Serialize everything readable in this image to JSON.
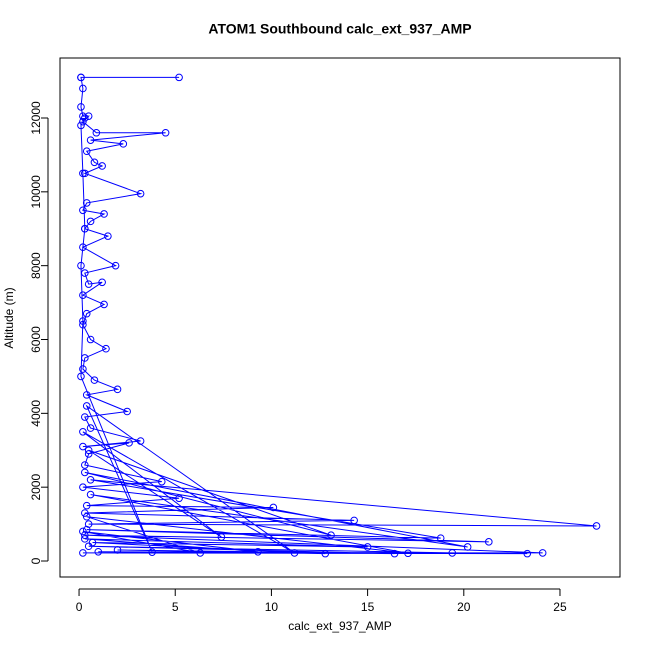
{
  "chart_data": {
    "type": "line",
    "title": "ATOM1 Southbound calc_ext_937_AMP",
    "x_label": "calc_ext_937_AMP",
    "y_label": "Altitude (m)",
    "xlim": [
      -0.99,
      28.12
    ],
    "ylim": [
      -433,
      13625
    ],
    "xticks": [
      0,
      5,
      10,
      15,
      20,
      25
    ],
    "yticks": [
      0,
      2000,
      4000,
      6000,
      8000,
      10000,
      12000
    ],
    "markers": true,
    "series": [
      {
        "color": "#0000ff",
        "x": [
          0.1,
          5.2,
          0.1,
          0.2,
          0.1,
          0.2,
          0.5,
          0.2,
          0.9,
          4.5,
          0.6,
          2.3,
          0.4,
          0.8,
          1.2,
          0.3,
          3.2,
          0.4,
          0.2,
          1.3,
          0.6,
          0.3,
          1.5,
          0.2,
          1.9,
          0.3,
          0.5,
          1.2,
          0.2,
          1.3,
          0.4,
          0.2,
          0.6,
          1.4,
          0.3,
          0.2,
          0.8,
          2.0,
          0.4,
          2.5,
          0.3,
          0.6,
          3.2,
          0.2,
          2.6,
          0.5,
          0.3,
          4.3,
          0.2,
          5.2,
          0.4,
          10.1,
          0.3,
          14.3,
          0.5,
          26.9,
          0.6,
          18.8,
          0.4,
          21.3,
          0.3,
          24.1,
          0.2,
          23.3,
          1.0,
          19.4,
          0.5,
          16.4,
          2.0,
          12.8,
          0.7,
          15.0,
          0.3,
          9.3,
          0.2,
          6.3,
          0.4,
          17.1,
          0.6,
          20.2,
          0.3,
          13.1,
          0.5,
          7.4,
          0.2,
          11.2,
          0.4,
          3.8,
          0.1,
          0.2,
          0.1,
          0.3,
          0.2,
          0.1,
          0.3
        ],
        "values": [
          13100,
          13100,
          13100,
          12800,
          12300,
          12050,
          12050,
          11900,
          11600,
          11600,
          11400,
          11300,
          11100,
          10800,
          10700,
          10500,
          9950,
          9700,
          9500,
          9400,
          9200,
          9000,
          8800,
          8500,
          8000,
          7800,
          7500,
          7550,
          7200,
          6950,
          6700,
          6400,
          6000,
          5750,
          5500,
          5200,
          4900,
          4650,
          4500,
          4050,
          3900,
          3600,
          3250,
          3100,
          3200,
          2900,
          2600,
          2150,
          2000,
          1700,
          1500,
          1450,
          1300,
          1100,
          1000,
          950,
          2200,
          620,
          850,
          520,
          700,
          220,
          220,
          200,
          250,
          220,
          400,
          200,
          300,
          200,
          500,
          380,
          600,
          250,
          800,
          220,
          1200,
          210,
          1800,
          380,
          2400,
          700,
          3000,
          650,
          3500,
          220,
          4200,
          240,
          5000,
          6500,
          8000,
          9000,
          10500,
          11800,
          12000
        ]
      }
    ]
  }
}
